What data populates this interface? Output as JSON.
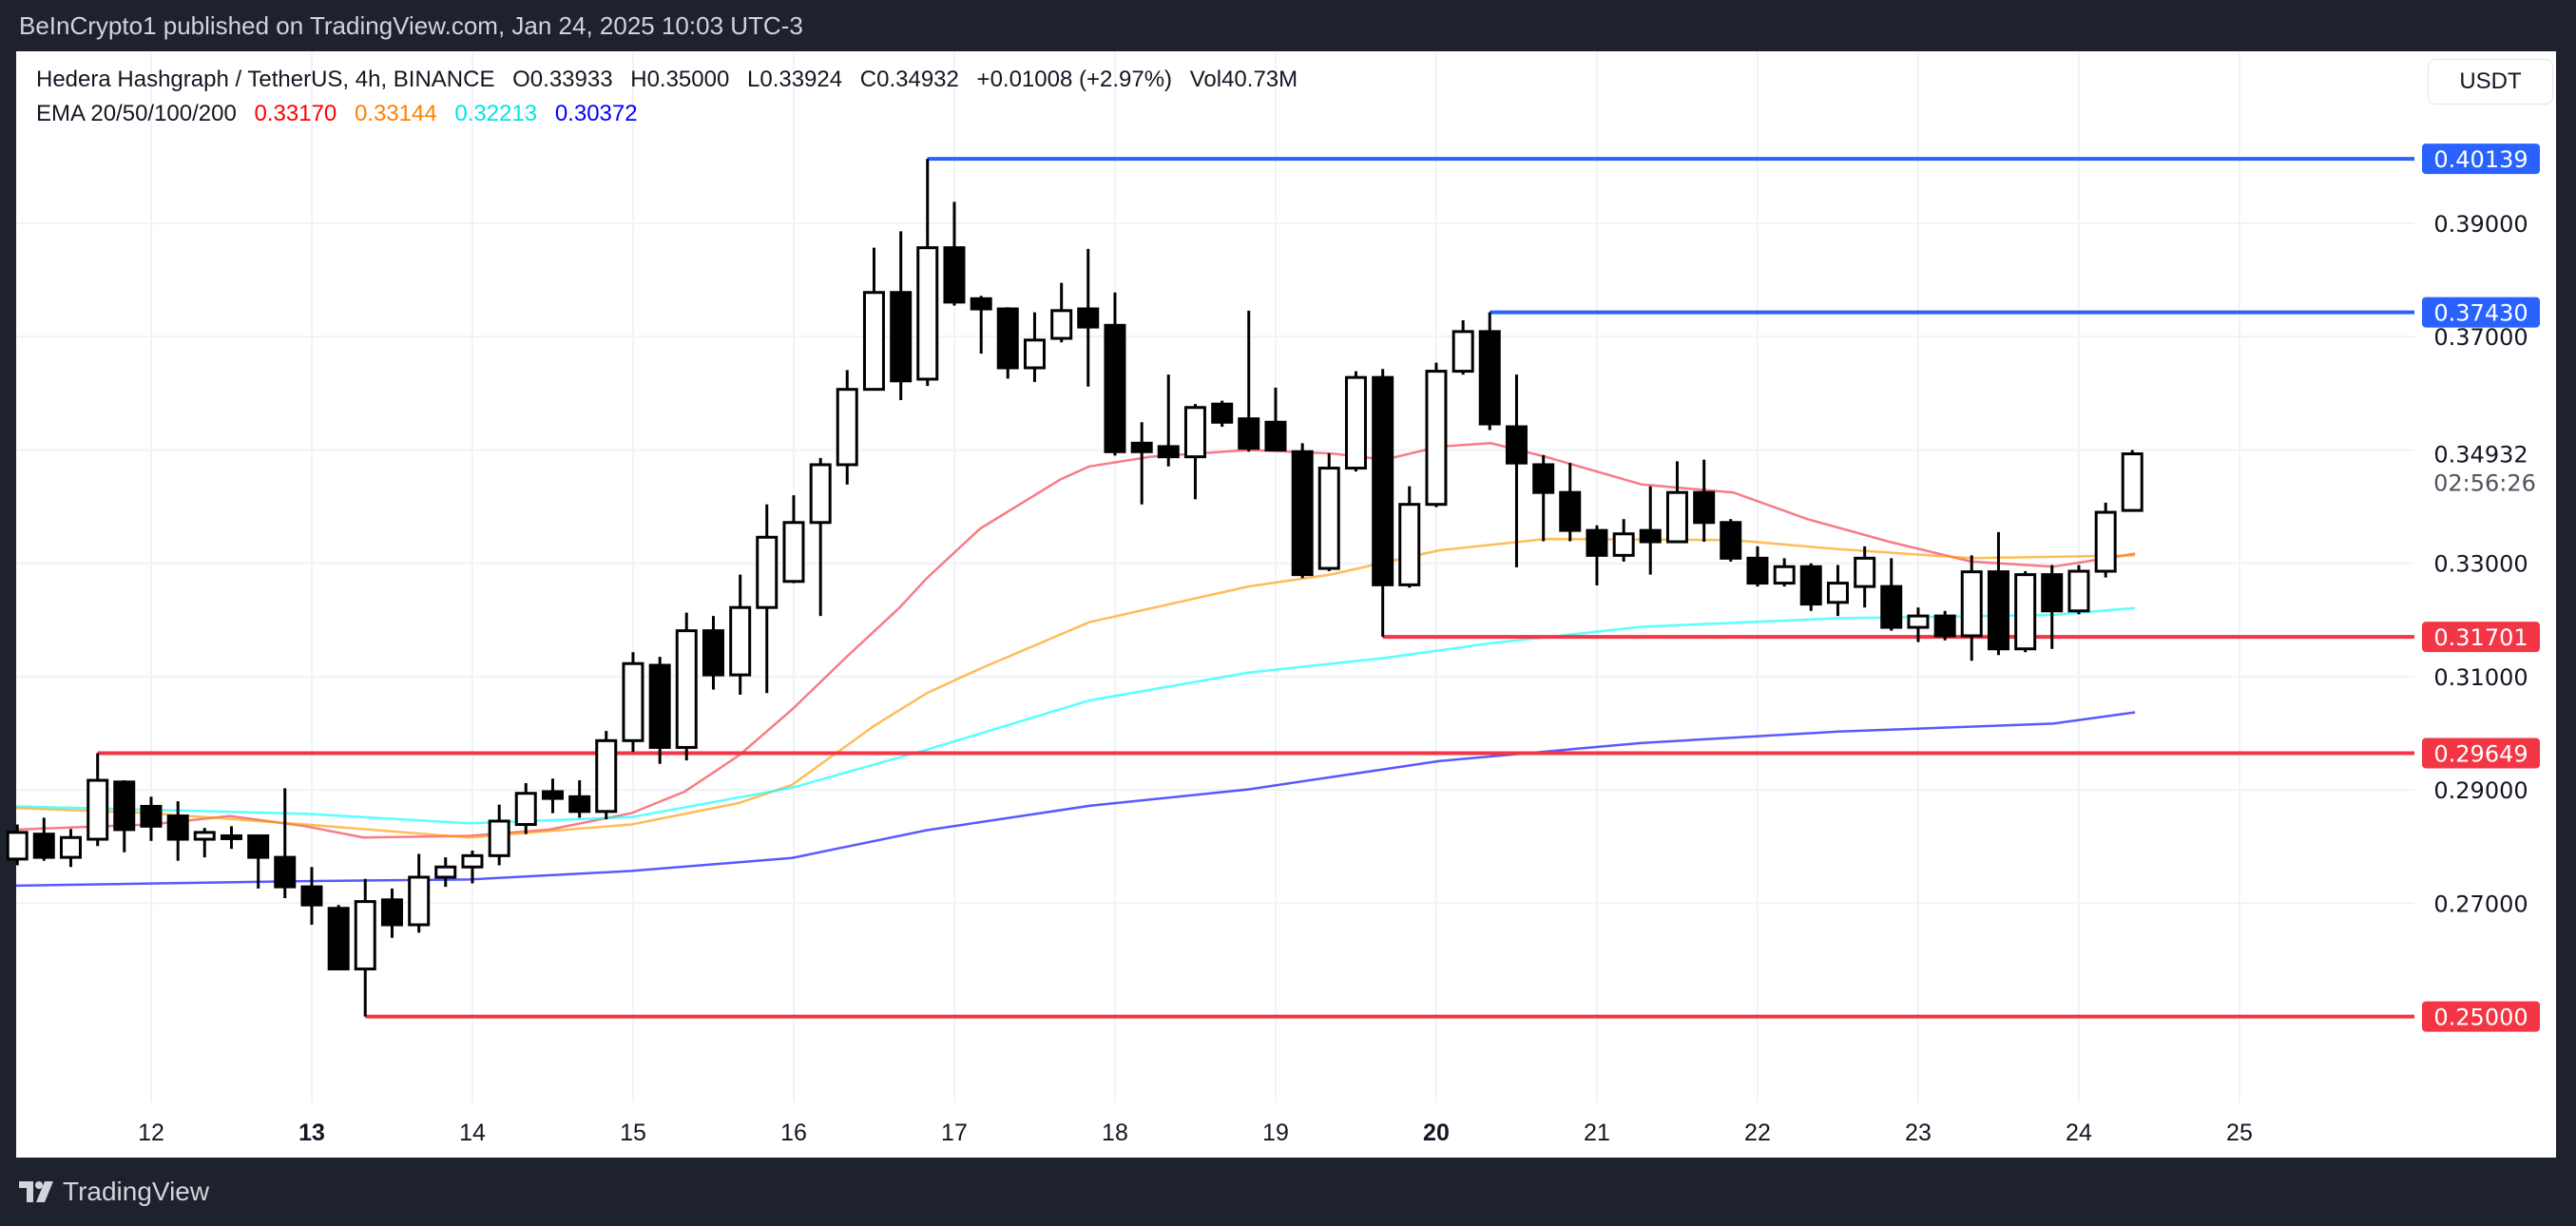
{
  "header": {
    "published": "BeInCrypto1 published on TradingView.com, Jan 24, 2025 10:03 UTC-3"
  },
  "legend": {
    "symbol": "Hedera Hashgraph / TetherUS, 4h, BINANCE",
    "open": "O0.33933",
    "high": "H0.35000",
    "low": "L0.33924",
    "close": "C0.34932",
    "change": "+0.01008 (+2.97%)",
    "volume": "Vol40.73M",
    "ema_label": "EMA 20/50/100/200",
    "ema20": "0.33170",
    "ema50": "0.33144",
    "ema100": "0.32213",
    "ema200": "0.30372"
  },
  "currency_button": "USDT",
  "countdown": "02:56:26",
  "footer": {
    "brand": "TradingView"
  },
  "colors": {
    "ema20": "#f23645",
    "ema50": "#ff9800",
    "ema100": "#00ffff",
    "ema200": "#0000ff",
    "support": "#f23645",
    "resistance": "#2962ff",
    "background": "#ffffff",
    "frame": "#1e222d"
  },
  "chart_data": {
    "type": "candlestick",
    "title": "",
    "xlabel": "",
    "ylabel": "",
    "ylim": [
      0.243,
      0.418
    ],
    "xlim": [
      11.07,
      25.6
    ],
    "grid": true,
    "x_ticks": [
      {
        "label": "12",
        "value": 12,
        "bold": false
      },
      {
        "label": "13",
        "value": 13,
        "bold": true
      },
      {
        "label": "14",
        "value": 14,
        "bold": false
      },
      {
        "label": "15",
        "value": 15,
        "bold": false
      },
      {
        "label": "16",
        "value": 16,
        "bold": false
      },
      {
        "label": "17",
        "value": 17,
        "bold": false
      },
      {
        "label": "18",
        "value": 18,
        "bold": false
      },
      {
        "label": "19",
        "value": 19,
        "bold": false
      },
      {
        "label": "20",
        "value": 20,
        "bold": true
      },
      {
        "label": "21",
        "value": 21,
        "bold": false
      },
      {
        "label": "22",
        "value": 22,
        "bold": false
      },
      {
        "label": "23",
        "value": 23,
        "bold": false
      },
      {
        "label": "24",
        "value": 24,
        "bold": false
      },
      {
        "label": "25",
        "value": 25,
        "bold": false
      }
    ],
    "y_ticks": [
      "0.39000",
      "0.37000",
      "0.33000",
      "0.31000",
      "0.29000",
      "0.27000"
    ],
    "last_price": "0.34932",
    "levels": [
      {
        "label": "0.40139",
        "value": 0.40139,
        "from_day": 16.833,
        "kind": "resistance"
      },
      {
        "label": "0.37430",
        "value": 0.3743,
        "from_day": 20.333,
        "kind": "resistance"
      },
      {
        "label": "0.31701",
        "value": 0.31701,
        "from_day": 19.667,
        "kind": "support"
      },
      {
        "label": "0.29649",
        "value": 0.29649,
        "from_day": 11.667,
        "kind": "support"
      },
      {
        "label": "0.25000",
        "value": 0.25,
        "from_day": 13.333,
        "kind": "support"
      }
    ],
    "candle_fields": [
      "day",
      "open",
      "high",
      "low",
      "close"
    ],
    "candles": [
      [
        11.167,
        0.2778,
        0.2839,
        0.2767,
        0.2825
      ],
      [
        11.333,
        0.2822,
        0.2851,
        0.2775,
        0.2781
      ],
      [
        11.5,
        0.2781,
        0.2831,
        0.2764,
        0.2816
      ],
      [
        11.667,
        0.2813,
        0.29649,
        0.2801,
        0.2917
      ],
      [
        11.833,
        0.2914,
        0.2917,
        0.279,
        0.283
      ],
      [
        12,
        0.2871,
        0.2888,
        0.281,
        0.2836
      ],
      [
        12.167,
        0.2854,
        0.288,
        0.2775,
        0.2813
      ],
      [
        12.333,
        0.2813,
        0.2833,
        0.2781,
        0.2825
      ],
      [
        12.5,
        0.2819,
        0.2836,
        0.2796,
        0.2819
      ],
      [
        12.667,
        0.2819,
        0.2819,
        0.2726,
        0.2781
      ],
      [
        12.833,
        0.2781,
        0.2903,
        0.2709,
        0.2729
      ],
      [
        13,
        0.2729,
        0.2764,
        0.2662,
        0.2697
      ],
      [
        13.167,
        0.2691,
        0.2697,
        0.2584,
        0.2584
      ],
      [
        13.333,
        0.2584,
        0.2743,
        0.25,
        0.2703
      ],
      [
        13.5,
        0.2706,
        0.2726,
        0.2639,
        0.2662
      ],
      [
        13.667,
        0.2662,
        0.2787,
        0.2648,
        0.2746
      ],
      [
        13.833,
        0.2746,
        0.2781,
        0.2729,
        0.2764
      ],
      [
        14,
        0.2764,
        0.2793,
        0.2735,
        0.2784
      ],
      [
        14.167,
        0.2784,
        0.2874,
        0.2767,
        0.2845
      ],
      [
        14.333,
        0.2839,
        0.2912,
        0.2822,
        0.2894
      ],
      [
        14.5,
        0.2897,
        0.292,
        0.2859,
        0.2885
      ],
      [
        14.667,
        0.2888,
        0.2917,
        0.2851,
        0.2862
      ],
      [
        14.833,
        0.2862,
        0.3004,
        0.2848,
        0.2987
      ],
      [
        15,
        0.2987,
        0.3143,
        0.2967,
        0.3123
      ],
      [
        15.167,
        0.312,
        0.3135,
        0.2946,
        0.2975
      ],
      [
        15.333,
        0.2975,
        0.3213,
        0.2952,
        0.3181
      ],
      [
        15.5,
        0.3181,
        0.3207,
        0.3077,
        0.3103
      ],
      [
        15.667,
        0.3103,
        0.328,
        0.3068,
        0.3222
      ],
      [
        15.833,
        0.3222,
        0.3404,
        0.3071,
        0.3346
      ],
      [
        16,
        0.3268,
        0.342,
        0.3265,
        0.3372
      ],
      [
        16.167,
        0.3372,
        0.3486,
        0.3207,
        0.3474
      ],
      [
        16.333,
        0.3474,
        0.3641,
        0.3439,
        0.3607
      ],
      [
        16.5,
        0.3607,
        0.3857,
        0.3607,
        0.3778
      ],
      [
        16.667,
        0.3778,
        0.3886,
        0.3588,
        0.3622
      ],
      [
        16.833,
        0.3625,
        0.40139,
        0.3613,
        0.3857
      ],
      [
        17,
        0.3857,
        0.3938,
        0.3755,
        0.3761
      ],
      [
        17.167,
        0.3767,
        0.3772,
        0.367,
        0.3749
      ],
      [
        17.333,
        0.3749,
        0.3752,
        0.3626,
        0.3645
      ],
      [
        17.5,
        0.3645,
        0.3743,
        0.362,
        0.3694
      ],
      [
        17.667,
        0.3697,
        0.3795,
        0.369,
        0.3746
      ],
      [
        17.833,
        0.3749,
        0.3855,
        0.3612,
        0.3717
      ],
      [
        18,
        0.372,
        0.3778,
        0.349,
        0.3497
      ],
      [
        18.167,
        0.3512,
        0.3549,
        0.3404,
        0.3497
      ],
      [
        18.333,
        0.3506,
        0.3633,
        0.3471,
        0.3488
      ],
      [
        18.5,
        0.3488,
        0.3581,
        0.3413,
        0.3575
      ],
      [
        18.667,
        0.3581,
        0.3587,
        0.3541,
        0.3549
      ],
      [
        18.833,
        0.3555,
        0.3746,
        0.3497,
        0.3503
      ],
      [
        19,
        0.3549,
        0.361,
        0.35,
        0.35
      ],
      [
        19.167,
        0.3497,
        0.3512,
        0.3274,
        0.328
      ],
      [
        19.333,
        0.3291,
        0.3494,
        0.3286,
        0.3468
      ],
      [
        19.5,
        0.3468,
        0.3639,
        0.3462,
        0.3628
      ],
      [
        19.667,
        0.3628,
        0.3643,
        0.31701,
        0.3262
      ],
      [
        19.833,
        0.3262,
        0.3436,
        0.3257,
        0.3404
      ],
      [
        20,
        0.3404,
        0.3654,
        0.3399,
        0.3639
      ],
      [
        20.167,
        0.3639,
        0.3729,
        0.3633,
        0.3709
      ],
      [
        20.333,
        0.3709,
        0.3743,
        0.3535,
        0.3546
      ],
      [
        20.5,
        0.3541,
        0.3633,
        0.3293,
        0.3477
      ],
      [
        20.667,
        0.3474,
        0.3491,
        0.3339,
        0.3425
      ],
      [
        20.833,
        0.3425,
        0.3477,
        0.3339,
        0.3358
      ],
      [
        21,
        0.3358,
        0.3367,
        0.3261,
        0.3314
      ],
      [
        21.167,
        0.3314,
        0.3378,
        0.3303,
        0.3352
      ],
      [
        21.333,
        0.3358,
        0.3436,
        0.328,
        0.3338
      ],
      [
        21.5,
        0.3338,
        0.348,
        0.3338,
        0.3425
      ],
      [
        21.667,
        0.3425,
        0.3483,
        0.3338,
        0.3372
      ],
      [
        21.833,
        0.3372,
        0.3378,
        0.3303,
        0.3309
      ],
      [
        22,
        0.3309,
        0.333,
        0.3259,
        0.3265
      ],
      [
        22.167,
        0.3265,
        0.3309,
        0.3259,
        0.3294
      ],
      [
        22.333,
        0.3294,
        0.33,
        0.3216,
        0.3228
      ],
      [
        22.5,
        0.3231,
        0.3297,
        0.3207,
        0.3265
      ],
      [
        22.667,
        0.3259,
        0.333,
        0.3222,
        0.3309
      ],
      [
        22.833,
        0.3259,
        0.3309,
        0.3181,
        0.3187
      ],
      [
        23,
        0.3187,
        0.3222,
        0.3161,
        0.3207
      ],
      [
        23.167,
        0.3207,
        0.3216,
        0.3164,
        0.3172
      ],
      [
        23.333,
        0.3172,
        0.3314,
        0.3128,
        0.3285
      ],
      [
        23.5,
        0.3285,
        0.3355,
        0.3138,
        0.3149
      ],
      [
        23.667,
        0.3149,
        0.3286,
        0.3143,
        0.328
      ],
      [
        23.833,
        0.328,
        0.3297,
        0.3149,
        0.3216
      ],
      [
        24,
        0.3216,
        0.3297,
        0.321,
        0.3286
      ],
      [
        24.167,
        0.3286,
        0.3407,
        0.3275,
        0.339
      ],
      [
        24.333,
        0.33933,
        0.35,
        0.33924,
        0.34932
      ]
    ],
    "series": [
      {
        "name": "EMA 20",
        "color": "#f23645",
        "points": [
          [
            11.16,
            0.283
          ],
          [
            12,
            0.2839
          ],
          [
            12.49,
            0.2854
          ],
          [
            12.96,
            0.2836
          ],
          [
            13.32,
            0.2816
          ],
          [
            13.98,
            0.2819
          ],
          [
            14.48,
            0.283
          ],
          [
            14.99,
            0.2859
          ],
          [
            15.32,
            0.2897
          ],
          [
            15.66,
            0.2961
          ],
          [
            15.99,
            0.3042
          ],
          [
            16.33,
            0.3135
          ],
          [
            16.66,
            0.3222
          ],
          [
            16.83,
            0.3274
          ],
          [
            17.16,
            0.3361
          ],
          [
            17.66,
            0.3448
          ],
          [
            17.84,
            0.3471
          ],
          [
            18.22,
            0.3488
          ],
          [
            18.83,
            0.35
          ],
          [
            19.34,
            0.3494
          ],
          [
            19.68,
            0.3483
          ],
          [
            20.02,
            0.3506
          ],
          [
            20.34,
            0.3512
          ],
          [
            20.68,
            0.3488
          ],
          [
            21.28,
            0.3439
          ],
          [
            21.85,
            0.3425
          ],
          [
            22.31,
            0.3378
          ],
          [
            22.82,
            0.3338
          ],
          [
            23.33,
            0.3303
          ],
          [
            23.84,
            0.3294
          ],
          [
            24.35,
            0.3317
          ]
        ]
      },
      {
        "name": "EMA 50",
        "color": "#ff9800",
        "points": [
          [
            11.16,
            0.2868
          ],
          [
            12,
            0.2859
          ],
          [
            12.96,
            0.2839
          ],
          [
            13.98,
            0.2816
          ],
          [
            14.99,
            0.2839
          ],
          [
            15.66,
            0.2877
          ],
          [
            15.99,
            0.2909
          ],
          [
            16.5,
            0.3013
          ],
          [
            16.83,
            0.3071
          ],
          [
            17.16,
            0.3114
          ],
          [
            17.84,
            0.3196
          ],
          [
            18.83,
            0.3259
          ],
          [
            19.34,
            0.328
          ],
          [
            20.02,
            0.3323
          ],
          [
            20.68,
            0.3343
          ],
          [
            21.85,
            0.3341
          ],
          [
            22.5,
            0.3325
          ],
          [
            23.33,
            0.3309
          ],
          [
            24.35,
            0.3314
          ]
        ]
      },
      {
        "name": "EMA 100",
        "color": "#00ffff",
        "points": [
          [
            11.16,
            0.2871
          ],
          [
            12.96,
            0.2858
          ],
          [
            13.98,
            0.2841
          ],
          [
            14.99,
            0.2852
          ],
          [
            15.99,
            0.2904
          ],
          [
            16.83,
            0.2971
          ],
          [
            17.84,
            0.3058
          ],
          [
            18.83,
            0.3107
          ],
          [
            19.68,
            0.3133
          ],
          [
            20.34,
            0.3159
          ],
          [
            21.28,
            0.3188
          ],
          [
            22.5,
            0.3203
          ],
          [
            23.84,
            0.3209
          ],
          [
            24.35,
            0.3221
          ]
        ]
      },
      {
        "name": "EMA 200",
        "color": "#0000ff",
        "points": [
          [
            11.16,
            0.2731
          ],
          [
            12.96,
            0.2739
          ],
          [
            13.98,
            0.2742
          ],
          [
            14.99,
            0.2757
          ],
          [
            15.99,
            0.278
          ],
          [
            16.83,
            0.2829
          ],
          [
            17.84,
            0.2872
          ],
          [
            18.83,
            0.2901
          ],
          [
            20.02,
            0.2951
          ],
          [
            21.28,
            0.2983
          ],
          [
            22.5,
            0.3003
          ],
          [
            23.84,
            0.3017
          ],
          [
            24.35,
            0.3037
          ]
        ]
      }
    ]
  }
}
